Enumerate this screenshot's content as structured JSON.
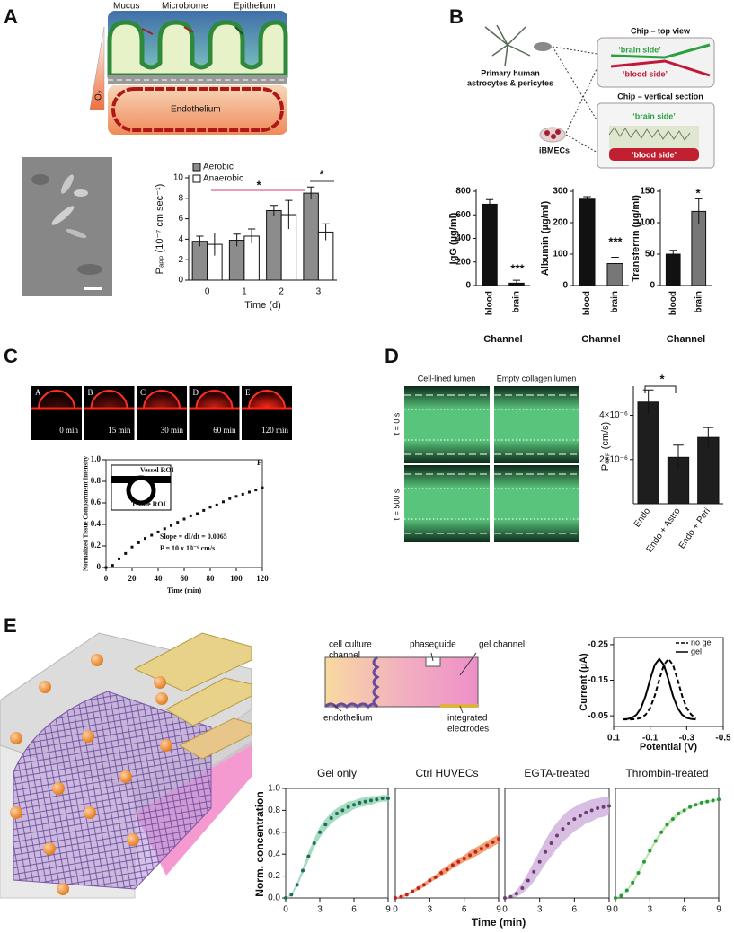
{
  "figure": {
    "panels": [
      "A",
      "B",
      "C",
      "D",
      "E"
    ],
    "a_labels": {
      "mucus": "Mucus",
      "microbiome": "Microbiome",
      "epithelium": "Epithelium",
      "endothelium": "Endothelium",
      "oxygen": "O₂"
    },
    "b_labels": {
      "cells": [
        "Primary human",
        "astrocytes & pericytes"
      ],
      "ibmecs": "iBMECs",
      "top_view": "Chip – top view",
      "section": "Chip – vertical section",
      "brain": "‘brain side’",
      "blood": "‘blood side’"
    },
    "c_frames": [
      {
        "label": "A",
        "time": "0 min"
      },
      {
        "label": "B",
        "time": "15 min"
      },
      {
        "label": "C",
        "time": "30 min"
      },
      {
        "label": "D",
        "time": "60 min"
      },
      {
        "label": "E",
        "time": "120 min"
      }
    ],
    "c_inset": {
      "label": "F",
      "vessel": "Vessel ROI",
      "tissue": "Tissue ROI",
      "slope": "Slope = dI/dt = 0.0065",
      "p": "P = 10 x 10⁻⁶ cm/s"
    },
    "d_labels": {
      "cell_lined": "Cell-lined lumen",
      "empty": "Empty collagen lumen",
      "t0": "t = 0 s",
      "t500": "t = 500 s"
    },
    "e_labels": {
      "culture": [
        "cell culture",
        "channel"
      ],
      "phaseguide": "phaseguide",
      "gel": "gel channel",
      "endothelium": "endothelium",
      "electrodes": [
        "integrated",
        "electrodes"
      ],
      "ylabel": "Norm. concentration",
      "xlabel": "Time (min)"
    }
  },
  "chart_data": [
    {
      "type": "bar",
      "ylabel": "Pₐₚₚ (10⁻⁷ cm sec⁻¹)",
      "xlabel": "Time (d)",
      "categories": [
        "0",
        "1",
        "2",
        "3"
      ],
      "series": [
        {
          "name": "Aerobic",
          "color": "#8c8c8c",
          "values": [
            3.8,
            3.9,
            6.8,
            8.5
          ],
          "errors": [
            0.5,
            0.6,
            0.5,
            0.6
          ]
        },
        {
          "name": "Anaerobic",
          "color": "#ffffff",
          "values": [
            3.5,
            4.3,
            6.4,
            4.7
          ],
          "errors": [
            1.1,
            0.7,
            1.4,
            0.8
          ]
        }
      ],
      "ylim": [
        0,
        10
      ],
      "yticks": [
        0,
        2,
        4,
        6,
        8,
        10
      ],
      "annotations": [
        "*",
        "*"
      ]
    },
    {
      "type": "bar",
      "ylabel": "IgG (µg/ml)",
      "xlabel": "Channel",
      "categories": [
        "blood",
        "brain"
      ],
      "series": [
        {
          "values": [
            690,
            20
          ],
          "errors": [
            40,
            25
          ],
          "colors": [
            "#111111",
            "#111111"
          ]
        }
      ],
      "ylim": [
        0,
        800
      ],
      "yticks": [
        0,
        200,
        400,
        600,
        800
      ],
      "annotations": [
        "***"
      ]
    },
    {
      "type": "bar",
      "ylabel": "Albumin (µg/ml)",
      "xlabel": "Channel",
      "categories": [
        "blood",
        "brain"
      ],
      "series": [
        {
          "values": [
            275,
            70
          ],
          "errors": [
            8,
            20
          ],
          "colors": [
            "#111111",
            "#777777"
          ]
        }
      ],
      "ylim": [
        0,
        300
      ],
      "yticks": [
        0,
        100,
        200,
        300
      ],
      "annotations": [
        "***"
      ]
    },
    {
      "type": "bar",
      "ylabel": "Transferrin (µg/ml)",
      "xlabel": "Channel",
      "categories": [
        "blood",
        "brain"
      ],
      "series": [
        {
          "values": [
            50,
            118
          ],
          "errors": [
            6,
            20
          ],
          "colors": [
            "#111111",
            "#777777"
          ]
        }
      ],
      "ylim": [
        0,
        150
      ],
      "yticks": [
        0,
        50,
        100,
        150
      ],
      "annotations": [
        "*"
      ]
    },
    {
      "type": "scatter",
      "xlabel": "Time (min)",
      "ylabel": "Normalized Tissue Compartment Intensity",
      "color": "#111111",
      "x": [
        0,
        5,
        10,
        15,
        20,
        25,
        30,
        35,
        40,
        45,
        50,
        55,
        60,
        65,
        70,
        75,
        80,
        85,
        90,
        95,
        100,
        105,
        110,
        115,
        120
      ],
      "values": [
        0,
        0.02,
        0.08,
        0.13,
        0.19,
        0.23,
        0.27,
        0.3,
        0.33,
        0.36,
        0.39,
        0.42,
        0.45,
        0.48,
        0.5,
        0.53,
        0.56,
        0.58,
        0.61,
        0.64,
        0.66,
        0.68,
        0.7,
        0.72,
        0.74
      ],
      "xlim": [
        0,
        120
      ],
      "xticks": [
        0,
        20,
        40,
        60,
        80,
        100,
        120
      ],
      "ylim": [
        0,
        1
      ],
      "yticks": [
        0,
        0.2,
        0.4,
        0.6,
        0.8,
        {
          "value": 1,
          "label": "1.0"
        }
      ]
    },
    {
      "type": "bar",
      "ylabel": "Pₐₚₚ (cm/s)",
      "categories": [
        "Endo",
        "Endo + Astro",
        "Endo + Peri"
      ],
      "series": [
        {
          "color": "#1e1e1e",
          "values": [
            4.6e-06,
            2.1e-06,
            3e-06
          ],
          "errors": [
            5.5e-07,
            5.5e-07,
            4.5e-07
          ]
        }
      ],
      "ylim": [
        0,
        5.2e-06
      ],
      "yticks": [
        {
          "value": 2e-06,
          "label": "2×10⁻⁶"
        },
        {
          "value": 4e-06,
          "label": "4×10⁻⁶"
        }
      ],
      "annotations": [
        "*"
      ]
    },
    {
      "type": "line",
      "xlabel": "Potential (V)",
      "ylabel": "Current (µA)",
      "x": [
        0.05,
        0.025,
        0,
        -0.025,
        -0.05,
        -0.075,
        -0.1,
        -0.125,
        -0.15,
        -0.175,
        -0.2,
        -0.225,
        -0.25,
        -0.275,
        -0.3,
        -0.325,
        -0.35
      ],
      "series": [
        {
          "name": "no gel",
          "color": "#000000",
          "dash": true,
          "values": [
            -0.04,
            -0.04,
            -0.04,
            -0.041,
            -0.044,
            -0.053,
            -0.072,
            -0.106,
            -0.152,
            -0.193,
            -0.21,
            -0.193,
            -0.152,
            -0.106,
            -0.072,
            -0.053,
            -0.044
          ]
        },
        {
          "name": "gel",
          "color": "#000000",
          "values": [
            -0.04,
            -0.041,
            -0.044,
            -0.053,
            -0.072,
            -0.106,
            -0.152,
            -0.193,
            -0.21,
            -0.193,
            -0.152,
            -0.106,
            -0.072,
            -0.053,
            -0.044,
            -0.041,
            -0.04
          ]
        }
      ],
      "xlim": [
        0.1,
        -0.5
      ],
      "xticks": [
        0.1,
        -0.1,
        -0.3,
        -0.5
      ],
      "ylim": [
        -0.02,
        -0.27
      ],
      "yticks": [
        -0.25,
        -0.15,
        -0.05
      ]
    },
    {
      "type": "line",
      "title": "Gel only",
      "x": [
        0,
        0.5,
        1,
        1.5,
        2,
        2.5,
        3,
        3.5,
        4,
        4.5,
        5,
        5.5,
        6,
        6.5,
        7,
        7.5,
        8,
        8.5,
        9
      ],
      "series": [
        {
          "color": "#1f6e4e",
          "band_color": "#8fd3b4",
          "marker": "dot",
          "values": [
            0,
            0.03,
            0.12,
            0.25,
            0.38,
            0.5,
            0.6,
            0.67,
            0.73,
            0.77,
            0.8,
            0.83,
            0.85,
            0.87,
            0.88,
            0.89,
            0.9,
            0.91,
            0.91
          ],
          "errors": [
            0,
            0.01,
            0.02,
            0.03,
            0.04,
            0.04,
            0.05,
            0.05,
            0.05,
            0.05,
            0.05,
            0.05,
            0.04,
            0.04,
            0.04,
            0.04,
            0.03,
            0.03,
            0.03
          ]
        }
      ],
      "xlim": [
        0,
        9
      ],
      "xticks": [
        0,
        3,
        6,
        9
      ],
      "ylim": [
        0,
        1
      ],
      "yticks": [
        {
          "value": 0,
          "label": "0.0"
        },
        0.2,
        0.4,
        0.6,
        0.8,
        {
          "value": 1,
          "label": "1.0"
        }
      ]
    },
    {
      "type": "line",
      "title": "Ctrl HUVECs",
      "x": [
        0,
        0.5,
        1,
        1.5,
        2,
        2.5,
        3,
        3.5,
        4,
        4.5,
        5,
        5.5,
        6,
        6.5,
        7,
        7.5,
        8,
        8.5,
        9
      ],
      "series": [
        {
          "color": "#c0202a",
          "band_color": "#f08a4a",
          "marker": "dot",
          "values": [
            0,
            0.01,
            0.03,
            0.06,
            0.09,
            0.12,
            0.16,
            0.19,
            0.23,
            0.26,
            0.3,
            0.33,
            0.36,
            0.39,
            0.42,
            0.45,
            0.48,
            0.51,
            0.54
          ],
          "errors": [
            0,
            0.01,
            0.01,
            0.01,
            0.02,
            0.02,
            0.02,
            0.02,
            0.03,
            0.03,
            0.03,
            0.03,
            0.03,
            0.04,
            0.04,
            0.04,
            0.04,
            0.04,
            0.04
          ]
        }
      ],
      "xlim": [
        0,
        9
      ],
      "xticks": [
        0,
        3,
        6,
        9
      ],
      "ylim": [
        0,
        1
      ]
    },
    {
      "type": "line",
      "title": "EGTA-treated",
      "x": [
        0,
        0.5,
        1,
        1.5,
        2,
        2.5,
        3,
        3.5,
        4,
        4.5,
        5,
        5.5,
        6,
        6.5,
        7,
        7.5,
        8,
        8.5,
        9
      ],
      "series": [
        {
          "color": "#6e3f6e",
          "band_color": "#cfaedc",
          "marker": "dot",
          "values": [
            0,
            0.01,
            0.04,
            0.09,
            0.16,
            0.24,
            0.33,
            0.42,
            0.5,
            0.57,
            0.63,
            0.68,
            0.72,
            0.75,
            0.78,
            0.8,
            0.82,
            0.83,
            0.84
          ],
          "errors": [
            0,
            0.01,
            0.03,
            0.05,
            0.07,
            0.09,
            0.1,
            0.11,
            0.12,
            0.12,
            0.12,
            0.12,
            0.11,
            0.11,
            0.1,
            0.1,
            0.09,
            0.09,
            0.08
          ]
        }
      ],
      "xlim": [
        0,
        9
      ],
      "xticks": [
        0,
        3,
        6,
        9
      ],
      "ylim": [
        0,
        1
      ]
    },
    {
      "type": "line",
      "title": "Thrombin-treated",
      "x": [
        0,
        0.5,
        1,
        1.5,
        2,
        2.5,
        3,
        3.5,
        4,
        4.5,
        5,
        5.5,
        6,
        6.5,
        7,
        7.5,
        8,
        8.5,
        9
      ],
      "series": [
        {
          "color": "#249a3a",
          "band_color": "#b2e09a",
          "marker": "dot",
          "values": [
            0,
            0.02,
            0.07,
            0.14,
            0.23,
            0.33,
            0.43,
            0.52,
            0.6,
            0.67,
            0.72,
            0.77,
            0.8,
            0.83,
            0.85,
            0.87,
            0.88,
            0.89,
            0.9
          ],
          "errors": [
            0,
            0.01,
            0.01,
            0.02,
            0.02,
            0.02,
            0.02,
            0.02,
            0.02,
            0.02,
            0.02,
            0.02,
            0.01,
            0.01,
            0.01,
            0.01,
            0.01,
            0.01,
            0.01
          ]
        }
      ],
      "xlim": [
        0,
        9
      ],
      "xticks": [
        0,
        3,
        6,
        9
      ],
      "ylim": [
        0,
        1
      ]
    }
  ]
}
